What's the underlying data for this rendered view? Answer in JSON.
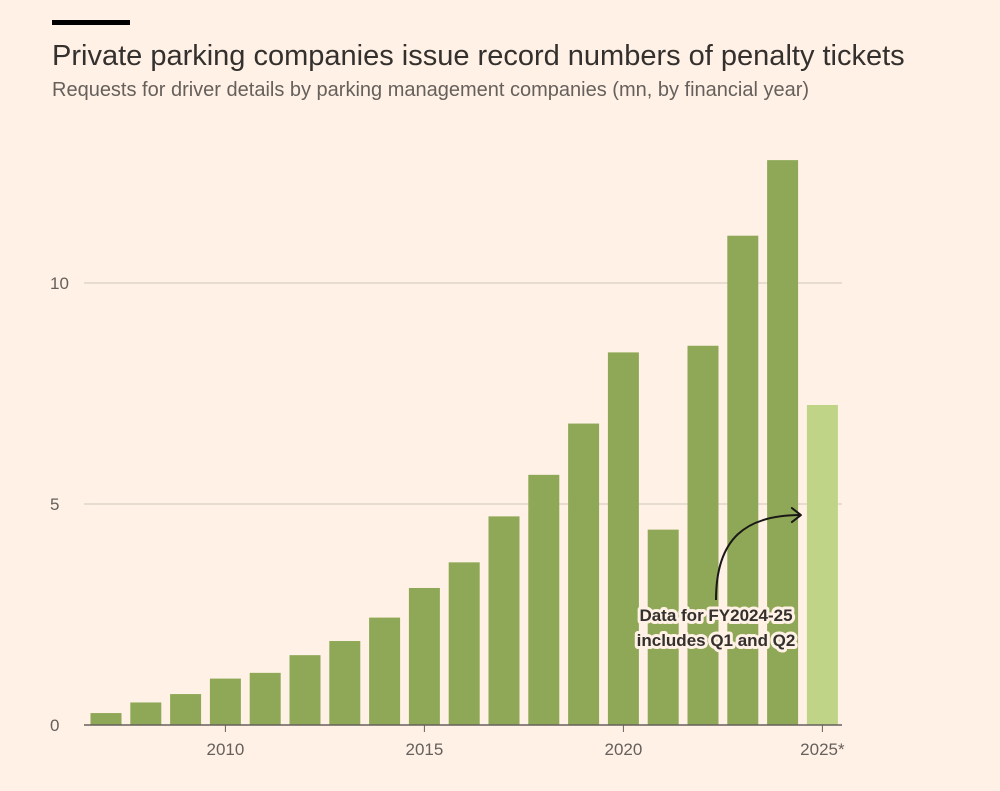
{
  "header": {
    "title": "Private parking companies issue record numbers of penalty tickets",
    "subtitle": "Requests for driver details by parking management companies (mn, by financial year)"
  },
  "colors": {
    "background": "#FFF1E5",
    "bar": "#8FA857",
    "bar_highlight": "#C0D488",
    "gridline": "#CEC6B9",
    "text": "#33302E",
    "muted_text": "#66605C"
  },
  "chart_data": {
    "type": "bar",
    "title": "Private parking companies issue record numbers of penalty tickets",
    "subtitle": "Requests for driver details by parking management companies (mn, by financial year)",
    "xlabel": "",
    "ylabel": "mn",
    "ylim": [
      0,
      13
    ],
    "yticks": [
      0,
      5,
      10
    ],
    "ytick_labels": [
      "0",
      "5",
      "10"
    ],
    "xticks": [
      2010,
      2015,
      2020,
      2025
    ],
    "xtick_labels": [
      "2010",
      "2015",
      "2020",
      "2025*"
    ],
    "grid": true,
    "categories": [
      2007,
      2008,
      2009,
      2010,
      2011,
      2012,
      2013,
      2014,
      2015,
      2016,
      2017,
      2018,
      2019,
      2020,
      2021,
      2022,
      2023,
      2024,
      2025
    ],
    "values": [
      0.27,
      0.51,
      0.7,
      1.05,
      1.18,
      1.58,
      1.9,
      2.43,
      3.1,
      3.68,
      4.72,
      5.66,
      6.82,
      8.43,
      4.42,
      8.58,
      11.07,
      12.78,
      7.24
    ],
    "highlight": [
      false,
      false,
      false,
      false,
      false,
      false,
      false,
      false,
      false,
      false,
      false,
      false,
      false,
      false,
      false,
      false,
      false,
      false,
      true
    ],
    "annotation": {
      "lines": [
        "Data for FY2024-25",
        "includes Q1 and Q2"
      ],
      "target_category": 2025
    }
  }
}
